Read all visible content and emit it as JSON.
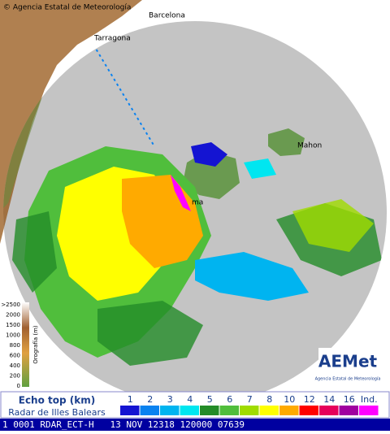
{
  "header": {
    "copyright": "© Agencia Estatal de Meteorología"
  },
  "places": [
    "Barcelona",
    "Tarragona",
    "Mahon",
    "ma"
  ],
  "orography": {
    "title": "Orografía (m)",
    "labels": [
      ">2500",
      "2000",
      "1500",
      "1000",
      "800",
      "600",
      "400",
      "200",
      "0"
    ]
  },
  "legend": {
    "title": "Echo top (km)",
    "subtitle": "Radar de Illes Balears",
    "items": [
      {
        "label": "1",
        "color": "#1414d2"
      },
      {
        "label": "2",
        "color": "#0a82f0"
      },
      {
        "label": "3",
        "color": "#00b4f0"
      },
      {
        "label": "4",
        "color": "#00e6f0"
      },
      {
        "label": "5",
        "color": "#238c28"
      },
      {
        "label": "6",
        "color": "#50be3c"
      },
      {
        "label": "7",
        "color": "#a0dc00"
      },
      {
        "label": "8",
        "color": "#ffff00"
      },
      {
        "label": "10",
        "color": "#ffaa00"
      },
      {
        "label": "12",
        "color": "#ff0000"
      },
      {
        "label": "14",
        "color": "#e6005a"
      },
      {
        "label": "16",
        "color": "#a000a0"
      },
      {
        "label": "Ind.",
        "color": "#ff00ff"
      }
    ]
  },
  "logo": {
    "name": "AEMet",
    "subtitle": "Agencia Estatal de Meteorología"
  },
  "status": {
    "text": "1 0001 RDAR_ECT-H   13 NOV 12318 120000 07639"
  }
}
